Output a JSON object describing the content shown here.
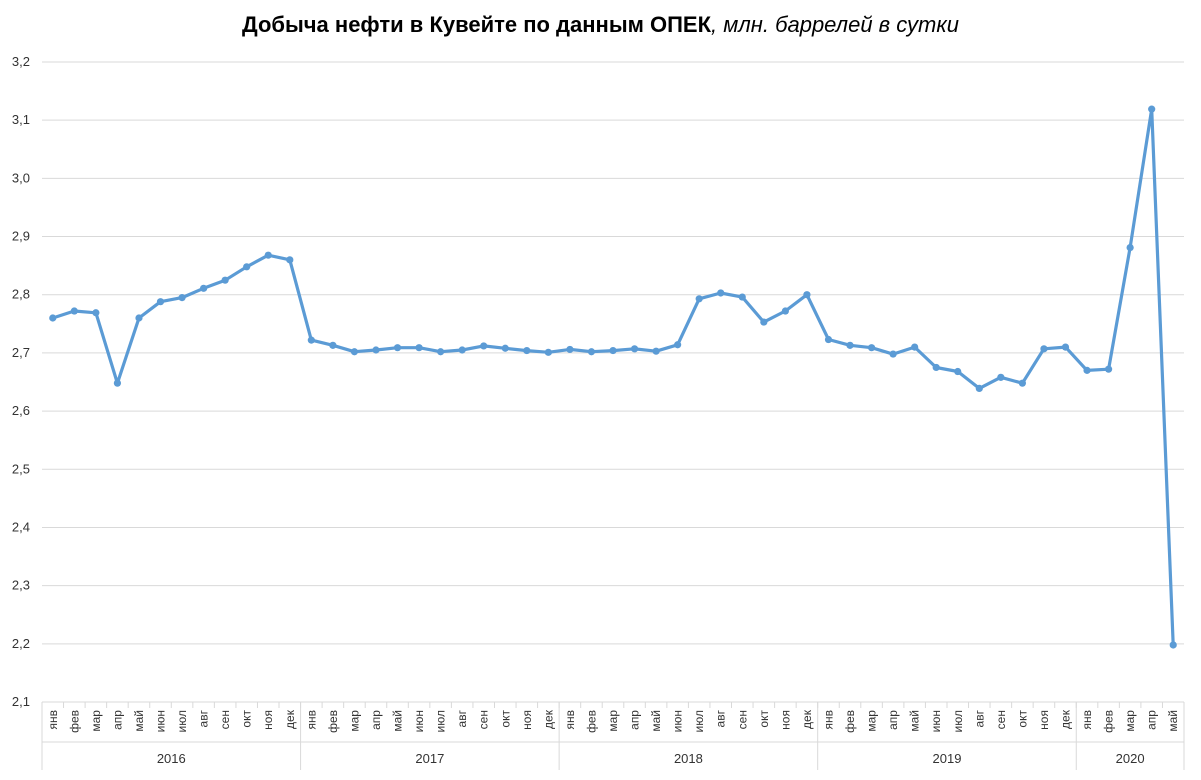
{
  "chart_data": {
    "type": "line",
    "title": "Добыча нефти в Кувейте по данным ОПЕК",
    "title_unit": ", млн. баррелей в сутки",
    "ylim": [
      2.1,
      3.2
    ],
    "yticks": [
      "2,1",
      "2,2",
      "2,3",
      "2,4",
      "2,5",
      "2,6",
      "2,7",
      "2,8",
      "2,9",
      "3,0",
      "3,1",
      "3,2"
    ],
    "grid": true,
    "legend": "none",
    "line_color": "#5b9bd5",
    "groups": [
      {
        "year": "2016",
        "months": [
          "янв",
          "фев",
          "мар",
          "апр",
          "май",
          "июн",
          "июл",
          "авг",
          "сен",
          "окт",
          "ноя",
          "дек"
        ]
      },
      {
        "year": "2017",
        "months": [
          "янв",
          "фев",
          "мар",
          "апр",
          "май",
          "июн",
          "июл",
          "авг",
          "сен",
          "окт",
          "ноя",
          "дек"
        ]
      },
      {
        "year": "2018",
        "months": [
          "янв",
          "фев",
          "мар",
          "апр",
          "май",
          "июн",
          "июл",
          "авг",
          "сен",
          "окт",
          "ноя",
          "дек"
        ]
      },
      {
        "year": "2019",
        "months": [
          "янв",
          "фев",
          "мар",
          "апр",
          "май",
          "июн",
          "июл",
          "авг",
          "сен",
          "окт",
          "ноя",
          "дек"
        ]
      },
      {
        "year": "2020",
        "months": [
          "янв",
          "фев",
          "мар",
          "апр",
          "май"
        ]
      }
    ],
    "values": [
      2.76,
      2.772,
      2.769,
      2.648,
      2.76,
      2.788,
      2.795,
      2.811,
      2.825,
      2.848,
      2.868,
      2.86,
      2.722,
      2.713,
      2.702,
      2.705,
      2.709,
      2.709,
      2.702,
      2.705,
      2.712,
      2.708,
      2.704,
      2.701,
      2.706,
      2.702,
      2.704,
      2.707,
      2.703,
      2.714,
      2.793,
      2.803,
      2.796,
      2.753,
      2.772,
      2.8,
      2.723,
      2.713,
      2.709,
      2.698,
      2.71,
      2.675,
      2.668,
      2.639,
      2.658,
      2.648,
      2.707,
      2.71,
      2.67,
      2.672,
      2.881,
      3.119,
      2.198
    ]
  }
}
